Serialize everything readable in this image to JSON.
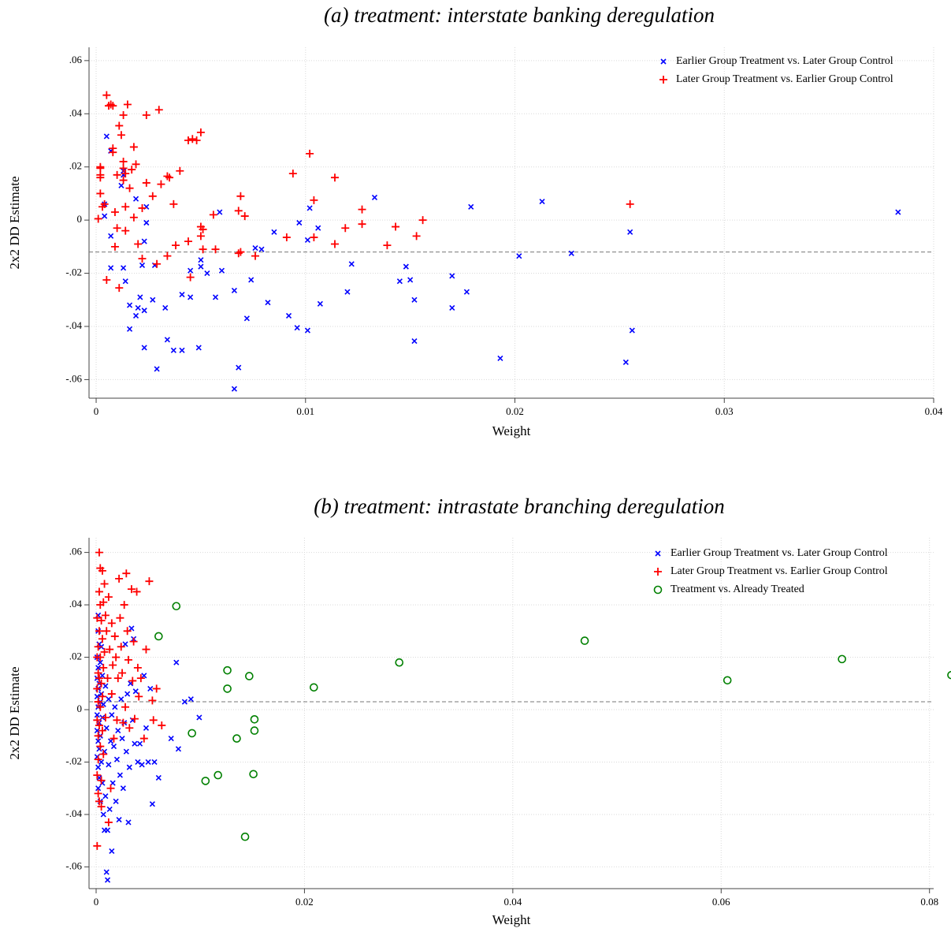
{
  "chart_data": [
    {
      "type": "scatter",
      "title": "(a) treatment: interstate banking deregulation",
      "x_label": "Weight",
      "y_label": "2x2 DD Estimate",
      "grid": true,
      "legend": "top-right",
      "xlim": [
        -0.00034,
        0.04
      ],
      "ylim": [
        -0.067,
        0.065
      ],
      "xticks": [
        0,
        0.01,
        0.02,
        0.03,
        0.04
      ],
      "yticks": [
        {
          "value": 0.06,
          "label": ".06"
        },
        {
          "value": 0.04,
          "label": ".04"
        },
        {
          "value": 0.02,
          "label": ".02"
        },
        0,
        {
          "value": -0.02,
          "label": "-.02"
        },
        {
          "value": -0.04,
          "label": "-.04"
        },
        {
          "value": -0.06,
          "label": "-.06"
        }
      ],
      "hline": -0.012,
      "series": [
        {
          "name": "Earlier Group Treatment vs. Later Group Control",
          "color": "#0000ff",
          "marker": "x",
          "x": [
            0.0005,
            0.0007,
            0.0004,
            0.0004,
            0.0007,
            0.0012,
            0.0013,
            0.0013,
            0.0013,
            0.0014,
            0.0007,
            0.0016,
            0.0016,
            0.0019,
            0.002,
            0.0021,
            0.0023,
            0.0023,
            0.0022,
            0.0023,
            0.0024,
            0.0024,
            0.0019,
            0.0027,
            0.0028,
            0.0029,
            0.0033,
            0.0034,
            0.0037,
            0.0041,
            0.0041,
            0.0045,
            0.0045,
            0.0049,
            0.005,
            0.005,
            0.0053,
            0.0057,
            0.0059,
            0.006,
            0.0066,
            0.0066,
            0.0068,
            0.0072,
            0.0074,
            0.0076,
            0.0079,
            0.0082,
            0.0085,
            0.0092,
            0.0096,
            0.0097,
            0.0101,
            0.0101,
            0.0102,
            0.0106,
            0.0107,
            0.012,
            0.0122,
            0.0133,
            0.0145,
            0.0148,
            0.015,
            0.0152,
            0.0152,
            0.017,
            0.017,
            0.0177,
            0.0179,
            0.0193,
            0.0202,
            0.0213,
            0.0227,
            0.0253,
            0.0255,
            0.0256,
            0.0383
          ],
          "values": [
            0.0315,
            0.026,
            0.006,
            0.0015,
            -0.006,
            0.013,
            0.0185,
            0.017,
            -0.018,
            -0.023,
            -0.018,
            -0.032,
            -0.041,
            -0.036,
            -0.033,
            -0.029,
            -0.034,
            -0.048,
            -0.017,
            -0.008,
            -0.001,
            0.005,
            0.008,
            -0.03,
            -0.017,
            -0.056,
            -0.033,
            -0.045,
            -0.049,
            -0.049,
            -0.028,
            -0.029,
            -0.019,
            -0.048,
            -0.015,
            -0.0175,
            -0.02,
            -0.029,
            0.003,
            -0.019,
            -0.0265,
            -0.0635,
            -0.0555,
            -0.037,
            -0.0225,
            -0.0105,
            -0.011,
            -0.031,
            -0.0045,
            -0.036,
            -0.0405,
            -0.001,
            -0.0415,
            -0.0075,
            0.0045,
            -0.003,
            -0.0315,
            -0.027,
            -0.0165,
            0.0085,
            -0.023,
            -0.0175,
            -0.0225,
            -0.0455,
            -0.03,
            -0.021,
            -0.033,
            -0.027,
            0.005,
            -0.052,
            -0.0135,
            0.007,
            -0.0125,
            -0.0535,
            -0.0045,
            -0.0415,
            0.003
          ]
        },
        {
          "name": "Later Group Treatment vs. Earlier Group Control",
          "color": "#ff0000",
          "marker": "+",
          "x": [
            0.0001,
            0.0002,
            0.0002,
            0.0002,
            0.0002,
            0.0002,
            0.0003,
            0.0004,
            0.0005,
            0.0005,
            0.0006,
            0.0007,
            0.0008,
            0.0008,
            0.0008,
            0.0009,
            0.0009,
            0.001,
            0.001,
            0.0011,
            0.0011,
            0.0012,
            0.0013,
            0.0013,
            0.0013,
            0.0013,
            0.0014,
            0.0014,
            0.0014,
            0.0015,
            0.0016,
            0.0017,
            0.0018,
            0.0018,
            0.0019,
            0.002,
            0.0022,
            0.0022,
            0.0024,
            0.0024,
            0.0027,
            0.0029,
            0.003,
            0.0031,
            0.0034,
            0.0034,
            0.0035,
            0.0037,
            0.0038,
            0.004,
            0.0044,
            0.0044,
            0.0045,
            0.0046,
            0.0048,
            0.005,
            0.005,
            0.005,
            0.0051,
            0.0051,
            0.0056,
            0.0057,
            0.0068,
            0.0068,
            0.0069,
            0.0069,
            0.0071,
            0.0076,
            0.0091,
            0.0094,
            0.0102,
            0.0104,
            0.0104,
            0.0114,
            0.0114,
            0.0119,
            0.0127,
            0.0127,
            0.0139,
            0.0143,
            0.0153,
            0.0156,
            0.0255
          ],
          "values": [
            0.0005,
            0.02,
            0.0195,
            0.017,
            0.016,
            0.01,
            0.005,
            0.006,
            -0.0225,
            0.047,
            0.043,
            0.0435,
            0.043,
            0.027,
            0.0255,
            0.003,
            -0.01,
            -0.003,
            0.017,
            0.0355,
            -0.0255,
            0.032,
            0.0395,
            0.022,
            0.0195,
            0.015,
            -0.004,
            0.005,
            0.0175,
            0.0435,
            0.012,
            0.019,
            0.0275,
            0.001,
            0.021,
            -0.009,
            -0.0145,
            0.0045,
            0.0395,
            0.014,
            0.009,
            -0.0165,
            0.0415,
            0.0135,
            -0.0135,
            0.0165,
            0.016,
            0.006,
            -0.0095,
            0.0185,
            -0.008,
            0.03,
            -0.0215,
            0.0305,
            0.03,
            0.033,
            -0.0025,
            -0.006,
            -0.011,
            -0.0035,
            0.002,
            -0.011,
            -0.0125,
            0.0035,
            0.009,
            -0.012,
            0.0015,
            -0.0135,
            -0.0065,
            0.0175,
            0.025,
            0.0075,
            -0.0065,
            -0.009,
            0.016,
            -0.003,
            -0.0015,
            0.004,
            -0.0095,
            -0.0025,
            -0.006,
            0,
            0.006
          ]
        }
      ]
    },
    {
      "type": "scatter",
      "title": "(b) treatment: intrastate branching deregulation",
      "x_label": "Weight",
      "y_label": "2x2 DD Estimate",
      "grid": true,
      "legend": "top-right",
      "xlim": [
        -0.00068,
        0.0804
      ],
      "ylim": [
        -0.0683,
        0.0656
      ],
      "xticks": [
        0,
        0.02,
        0.04,
        0.06,
        0.08
      ],
      "yticks": [
        {
          "value": 0.06,
          "label": ".06"
        },
        {
          "value": 0.04,
          "label": ".04"
        },
        {
          "value": 0.02,
          "label": ".02"
        },
        0,
        {
          "value": -0.02,
          "label": "-.02"
        },
        {
          "value": -0.04,
          "label": "-.04"
        },
        {
          "value": -0.06,
          "label": "-.06"
        }
      ],
      "hline": 0.003,
      "series": [
        {
          "name": "Earlier Group Treatment vs. Later Group Control",
          "color": "#0000ff",
          "marker": "x",
          "x": [
            0.0001,
            0.0001,
            0.0001,
            0.0001,
            0.0001,
            0.0001,
            0.0002,
            0.0002,
            0.0002,
            0.0002,
            0.0002,
            0.0002,
            0.0002,
            0.0002,
            0.0003,
            0.0003,
            0.0003,
            0.0003,
            0.0003,
            0.0004,
            0.0004,
            0.0004,
            0.0004,
            0.0005,
            0.0005,
            0.0005,
            0.0006,
            0.0006,
            0.0006,
            0.0007,
            0.0007,
            0.0008,
            0.0008,
            0.0009,
            0.0009,
            0.001,
            0.001,
            0.0011,
            0.0011,
            0.0012,
            0.0012,
            0.0013,
            0.0014,
            0.0015,
            0.0015,
            0.0016,
            0.0017,
            0.0018,
            0.0019,
            0.002,
            0.0021,
            0.0022,
            0.0023,
            0.0024,
            0.0025,
            0.0026,
            0.0027,
            0.0028,
            0.0029,
            0.003,
            0.0031,
            0.0032,
            0.0033,
            0.0034,
            0.0035,
            0.0036,
            0.0037,
            0.0038,
            0.004,
            0.0042,
            0.0044,
            0.0046,
            0.0048,
            0.005,
            0.0052,
            0.0054,
            0.0056,
            0.006,
            0.0072,
            0.0077,
            0.0079,
            0.0085,
            0.0091,
            0.0099
          ],
          "values": [
            0.02,
            0.012,
            0.005,
            -0.002,
            -0.008,
            -0.018,
            0.036,
            0.03,
            0.016,
            0.008,
            0.001,
            -0.012,
            -0.022,
            -0.03,
            0.025,
            0.01,
            -0.005,
            -0.015,
            -0.026,
            0.018,
            0.003,
            -0.01,
            -0.035,
            0.024,
            0.006,
            -0.02,
            0.013,
            -0.003,
            -0.028,
            -0.04,
            0.002,
            -0.046,
            -0.016,
            -0.033,
            0.009,
            -0.062,
            -0.007,
            -0.065,
            -0.046,
            -0.021,
            0.004,
            -0.038,
            -0.012,
            -0.054,
            -0.002,
            -0.028,
            -0.014,
            0.001,
            -0.035,
            -0.019,
            -0.008,
            -0.042,
            -0.025,
            0.004,
            -0.011,
            -0.03,
            -0.005,
            0.025,
            -0.016,
            0.006,
            -0.043,
            -0.022,
            0.01,
            0.031,
            -0.004,
            0.027,
            -0.013,
            0.007,
            -0.02,
            -0.013,
            -0.021,
            0.013,
            -0.007,
            -0.02,
            0.008,
            -0.036,
            -0.02,
            -0.026,
            -0.011,
            0.018,
            -0.015,
            0.003,
            0.004,
            -0.003
          ]
        },
        {
          "name": "Later Group Treatment vs. Earlier Group Control",
          "color": "#ff0000",
          "marker": "+",
          "x": [
            0.0001,
            0.0001,
            0.0001,
            0.0001,
            0.0001,
            0.0001,
            0.0002,
            0.0002,
            0.0002,
            0.0002,
            0.0002,
            0.0002,
            0.0003,
            0.0003,
            0.0003,
            0.0003,
            0.0003,
            0.0003,
            0.0004,
            0.0004,
            0.0004,
            0.0004,
            0.0004,
            0.0005,
            0.0005,
            0.0005,
            0.0005,
            0.0006,
            0.0006,
            0.0006,
            0.0006,
            0.0007,
            0.0007,
            0.0007,
            0.0008,
            0.0008,
            0.0009,
            0.0009,
            0.001,
            0.0011,
            0.0012,
            0.0012,
            0.0013,
            0.0014,
            0.0015,
            0.0015,
            0.0016,
            0.0017,
            0.0018,
            0.0019,
            0.002,
            0.0021,
            0.0022,
            0.0023,
            0.0024,
            0.0025,
            0.0026,
            0.0027,
            0.0028,
            0.0029,
            0.003,
            0.0031,
            0.0032,
            0.0034,
            0.0035,
            0.0036,
            0.0037,
            0.0039,
            0.004,
            0.0041,
            0.0043,
            0.0046,
            0.0048,
            0.0051,
            0.0054,
            0.0055,
            0.0058,
            0.0063
          ],
          "values": [
            -0.052,
            0.035,
            0.02,
            0.008,
            -0.004,
            -0.025,
            -0.032,
            0.024,
            0.014,
            0.003,
            -0.01,
            -0.019,
            0.06,
            0.045,
            0.03,
            0.012,
            -0.006,
            -0.035,
            0.054,
            0.04,
            0.02,
            0.001,
            -0.014,
            0.034,
            0.01,
            -0.027,
            -0.037,
            0.053,
            0.027,
            0.005,
            -0.008,
            0.041,
            0.016,
            -0.017,
            0.048,
            0.022,
            0.036,
            -0.003,
            0.03,
            0.012,
            0.043,
            -0.043,
            0.023,
            -0.03,
            0.033,
            0.006,
            0.017,
            -0.011,
            0.028,
            0.02,
            -0.004,
            0.012,
            0.05,
            0.035,
            0.024,
            0.014,
            -0.005,
            0.04,
            0.001,
            0.052,
            0.03,
            0.019,
            -0.007,
            0.046,
            0.011,
            0.026,
            -0.0035,
            0.045,
            0.016,
            0.005,
            0.012,
            -0.011,
            0.023,
            0.049,
            0.0035,
            -0.004,
            0.008,
            -0.006
          ]
        },
        {
          "name": "Treatment vs. Already Treated",
          "color": "#008000",
          "marker": "o",
          "x": [
            0.0077,
            0.006,
            0.0092,
            0.0105,
            0.0117,
            0.0126,
            0.0126,
            0.0135,
            0.0143,
            0.0147,
            0.0151,
            0.0152,
            0.0152,
            0.0209,
            0.0291,
            0.0469,
            0.0606,
            0.0716,
            0.0821
          ],
          "values": [
            0.0395,
            0.028,
            -0.009,
            -0.0272,
            -0.025,
            0.015,
            0.008,
            -0.011,
            -0.0485,
            0.0128,
            -0.0246,
            -0.0037,
            -0.008,
            0.0085,
            0.018,
            0.0263,
            0.0112,
            0.0193,
            0.0132
          ]
        }
      ]
    }
  ]
}
